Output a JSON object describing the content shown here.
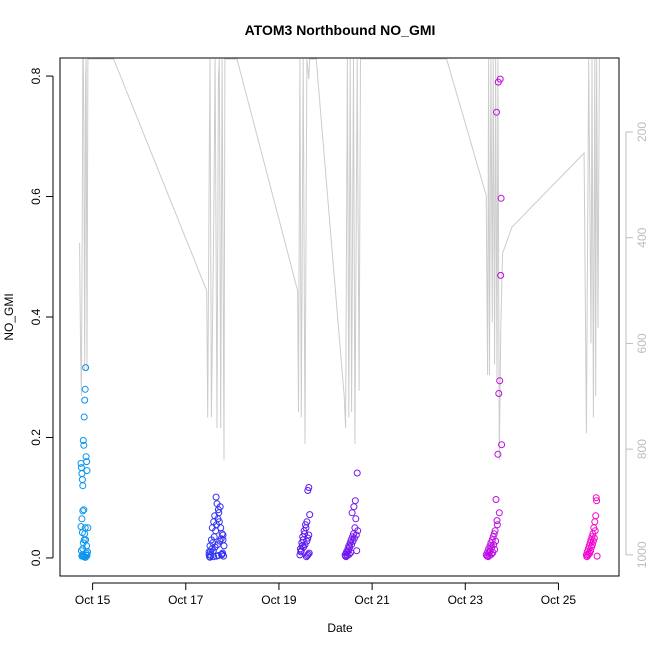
{
  "chart_data": {
    "type": "scatter",
    "title": "ATOM3 Northbound NO_GMI",
    "xlabel": "Date",
    "ylabel": "NO_GMI",
    "xlim": [
      14.3,
      26.3
    ],
    "ylim": [
      -0.03,
      0.83
    ],
    "x_ticks": [
      {
        "value": 15,
        "label": "Oct 15"
      },
      {
        "value": 17,
        "label": "Oct 17"
      },
      {
        "value": 19,
        "label": "Oct 19"
      },
      {
        "value": 21,
        "label": "Oct 21"
      },
      {
        "value": 23,
        "label": "Oct 23"
      },
      {
        "value": 25,
        "label": "Oct 25"
      }
    ],
    "y_ticks": [
      0.0,
      0.2,
      0.4,
      0.6,
      0.8
    ],
    "y_tick_labels": [
      "0.0",
      "0.2",
      "0.4",
      "0.6",
      "0.8"
    ],
    "right_axis": {
      "ticks": [
        200,
        400,
        600,
        800,
        1000
      ],
      "tick_labels": [
        "200",
        "400",
        "600",
        "800",
        "1000"
      ],
      "range": [
        60,
        1040
      ],
      "reversed": true,
      "color": "#bdbdbd"
    },
    "gradient_colors": [
      "#00a6ef",
      "#3b1cf0",
      "#9e10f0",
      "#ff00c8"
    ],
    "line_color": "#cccccc",
    "pressure_trace": [
      [
        14.72,
        410
      ],
      [
        14.74,
        600
      ],
      [
        14.76,
        700
      ],
      [
        14.78,
        300
      ],
      [
        14.79,
        60
      ],
      [
        14.8,
        60
      ],
      [
        14.81,
        180
      ],
      [
        14.83,
        650
      ],
      [
        14.85,
        100
      ],
      [
        14.86,
        60
      ],
      [
        14.88,
        650
      ],
      [
        14.9,
        60
      ],
      [
        14.93,
        60
      ],
      [
        15.45,
        60
      ],
      [
        17.45,
        500
      ],
      [
        17.47,
        740
      ],
      [
        17.5,
        300
      ],
      [
        17.52,
        60
      ],
      [
        17.55,
        740
      ],
      [
        17.6,
        380
      ],
      [
        17.63,
        60
      ],
      [
        17.67,
        760
      ],
      [
        17.7,
        100
      ],
      [
        17.72,
        60
      ],
      [
        17.75,
        760
      ],
      [
        17.78,
        60
      ],
      [
        17.82,
        820
      ],
      [
        17.84,
        60
      ],
      [
        17.95,
        60
      ],
      [
        18.1,
        60
      ],
      [
        19.4,
        500
      ],
      [
        19.42,
        730
      ],
      [
        19.45,
        60
      ],
      [
        19.48,
        740
      ],
      [
        19.52,
        60
      ],
      [
        19.56,
        790
      ],
      [
        19.6,
        60
      ],
      [
        19.64,
        100
      ],
      [
        19.66,
        60
      ],
      [
        19.8,
        60
      ],
      [
        20.4,
        700
      ],
      [
        20.43,
        760
      ],
      [
        20.47,
        60
      ],
      [
        20.5,
        740
      ],
      [
        20.53,
        60
      ],
      [
        20.56,
        730
      ],
      [
        20.6,
        60
      ],
      [
        20.63,
        790
      ],
      [
        20.68,
        60
      ],
      [
        20.72,
        690
      ],
      [
        20.75,
        60
      ],
      [
        22.6,
        60
      ],
      [
        23.45,
        320
      ],
      [
        23.48,
        660
      ],
      [
        23.5,
        60
      ],
      [
        23.52,
        660
      ],
      [
        23.55,
        60
      ],
      [
        23.58,
        560
      ],
      [
        23.6,
        60
      ],
      [
        23.63,
        640
      ],
      [
        23.65,
        60
      ],
      [
        23.68,
        670
      ],
      [
        23.7,
        60
      ],
      [
        23.73,
        820
      ],
      [
        23.76,
        580
      ],
      [
        23.8,
        430
      ],
      [
        24.0,
        380
      ],
      [
        25.55,
        240
      ],
      [
        25.6,
        770
      ],
      [
        25.65,
        60
      ],
      [
        25.7,
        600
      ],
      [
        25.72,
        60
      ],
      [
        25.75,
        740
      ],
      [
        25.78,
        60
      ],
      [
        25.8,
        700
      ],
      [
        25.82,
        60
      ],
      [
        25.85,
        570
      ],
      [
        25.88,
        60
      ]
    ],
    "series": [
      {
        "name": "",
        "x": [
          14.75,
          14.76,
          14.77,
          14.78,
          14.79,
          14.8,
          14.81,
          14.82,
          14.83,
          14.84,
          14.85,
          14.86,
          14.87,
          14.88,
          14.9,
          14.75,
          14.77,
          14.79,
          14.81,
          14.83,
          14.85,
          14.87,
          14.89,
          14.78,
          14.8,
          14.82,
          14.84,
          14.86,
          14.76,
          14.79,
          14.8,
          14.82,
          14.78,
          14.84,
          14.86,
          14.88,
          14.77,
          14.81,
          14.85,
          14.89
        ],
        "y": [
          0.157,
          0.15,
          0.14,
          0.13,
          0.12,
          0.195,
          0.187,
          0.234,
          0.262,
          0.28,
          0.316,
          0.168,
          0.16,
          0.145,
          0.05,
          0.052,
          0.065,
          0.078,
          0.08,
          0.04,
          0.03,
          0.02,
          0.01,
          0.005,
          0.003,
          0.002,
          0.001,
          0.008,
          0.012,
          0.015,
          0.025,
          0.03,
          0.042,
          0.05,
          0.005,
          0.004,
          0.003,
          0.002,
          0.001,
          0.01
        ]
      },
      {
        "name": "",
        "x": [
          17.5,
          17.52,
          17.55,
          17.57,
          17.6,
          17.62,
          17.65,
          17.67,
          17.7,
          17.72,
          17.75,
          17.78,
          17.8,
          17.82,
          17.5,
          17.53,
          17.56,
          17.58,
          17.61,
          17.64,
          17.66,
          17.69,
          17.71,
          17.74,
          17.77,
          17.79,
          17.81,
          17.51,
          17.54,
          17.59,
          17.63,
          17.68,
          17.73,
          17.76,
          17.8,
          17.52,
          17.6,
          17.66,
          17.7,
          17.78
        ],
        "y": [
          0.01,
          0.02,
          0.03,
          0.05,
          0.06,
          0.07,
          0.101,
          0.09,
          0.08,
          0.06,
          0.05,
          0.04,
          0.03,
          0.02,
          0.005,
          0.01,
          0.015,
          0.025,
          0.035,
          0.045,
          0.055,
          0.065,
          0.075,
          0.085,
          0.005,
          0.008,
          0.003,
          0.002,
          0.004,
          0.012,
          0.018,
          0.022,
          0.028,
          0.032,
          0.038,
          0.001,
          0.002,
          0.003,
          0.004,
          0.006
        ]
      },
      {
        "name": "",
        "x": [
          19.45,
          19.47,
          19.5,
          19.52,
          19.55,
          19.58,
          19.6,
          19.62,
          19.64,
          19.66,
          19.46,
          19.49,
          19.51,
          19.54,
          19.57,
          19.59,
          19.61,
          19.63,
          19.65,
          19.48,
          19.53,
          19.56,
          19.6,
          19.62,
          19.64
        ],
        "y": [
          0.005,
          0.01,
          0.02,
          0.03,
          0.04,
          0.05,
          0.06,
          0.112,
          0.117,
          0.072,
          0.015,
          0.025,
          0.035,
          0.045,
          0.055,
          0.002,
          0.004,
          0.006,
          0.008,
          0.012,
          0.018,
          0.022,
          0.028,
          0.033,
          0.038
        ]
      },
      {
        "name": "",
        "x": [
          20.42,
          20.45,
          20.48,
          20.5,
          20.53,
          20.55,
          20.58,
          20.6,
          20.63,
          20.65,
          20.68,
          20.43,
          20.46,
          20.49,
          20.52,
          20.56,
          20.59,
          20.62,
          20.66,
          20.69,
          20.44,
          20.47,
          20.51,
          20.54,
          20.57,
          20.61,
          20.64,
          20.67
        ],
        "y": [
          0.005,
          0.01,
          0.015,
          0.02,
          0.025,
          0.03,
          0.035,
          0.04,
          0.05,
          0.065,
          0.141,
          0.003,
          0.008,
          0.012,
          0.018,
          0.022,
          0.028,
          0.033,
          0.038,
          0.045,
          0.002,
          0.004,
          0.006,
          0.009,
          0.075,
          0.085,
          0.095,
          0.012
        ]
      },
      {
        "name": "",
        "x": [
          23.45,
          23.48,
          23.5,
          23.53,
          23.55,
          23.58,
          23.6,
          23.62,
          23.64,
          23.66,
          23.68,
          23.7,
          23.72,
          23.74,
          23.76,
          23.78,
          23.47,
          23.51,
          23.54,
          23.57,
          23.61,
          23.65,
          23.69,
          23.73,
          23.77,
          23.49,
          23.52,
          23.56,
          23.59,
          23.63,
          23.67,
          23.71,
          23.75
        ],
        "y": [
          0.005,
          0.01,
          0.015,
          0.02,
          0.025,
          0.03,
          0.035,
          0.04,
          0.045,
          0.097,
          0.062,
          0.172,
          0.273,
          0.294,
          0.469,
          0.188,
          0.003,
          0.008,
          0.012,
          0.018,
          0.022,
          0.028,
          0.055,
          0.075,
          0.597,
          0.002,
          0.004,
          0.006,
          0.009,
          0.014,
          0.74,
          0.79,
          0.795
        ]
      },
      {
        "name": "",
        "x": [
          25.6,
          25.62,
          25.64,
          25.66,
          25.68,
          25.7,
          25.72,
          25.74,
          25.76,
          25.78,
          25.8,
          25.82,
          25.61,
          25.63,
          25.65,
          25.67,
          25.69,
          25.71,
          25.73,
          25.75,
          25.77,
          25.79,
          25.81,
          25.83
        ],
        "y": [
          0.005,
          0.01,
          0.015,
          0.02,
          0.025,
          0.03,
          0.035,
          0.04,
          0.05,
          0.06,
          0.07,
          0.095,
          0.002,
          0.004,
          0.006,
          0.008,
          0.012,
          0.018,
          0.022,
          0.028,
          0.033,
          0.045,
          0.1,
          0.003
        ]
      }
    ]
  }
}
